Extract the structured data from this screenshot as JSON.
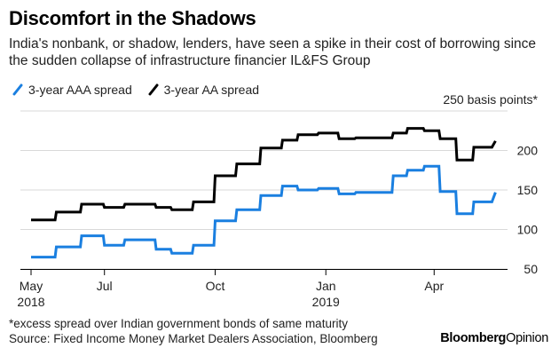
{
  "header": {
    "title": "Discomfort in the Shadows",
    "subtitle": "India's nonbank, or shadow, lenders, have seen a spike in their cost of borrowing since the sudden collapse of infrastructure financier IL&FS Group"
  },
  "footer": {
    "note": "*excess spread over Indian government bonds of same maturity",
    "source": "Source: Fixed Income Money Market Dealers Association, Bloomberg",
    "brand_main": "Bloomberg",
    "brand_sub": "Opinion"
  },
  "colors": {
    "aaa": "#1a7fe0",
    "aa": "#000000",
    "grid": "#d9d9d9"
  },
  "chart_data": {
    "type": "line",
    "title": "Discomfort in the Shadows",
    "ylabel": "",
    "y_unit_label": "250 basis points*",
    "ylim": [
      50,
      250
    ],
    "yticks": [
      50,
      100,
      150,
      200
    ],
    "xlim": [
      "2018-05-01",
      "2019-06-01"
    ],
    "xticks": [
      {
        "date": "2018-05-01",
        "label": "May",
        "sublabel": "2018"
      },
      {
        "date": "2018-07-01",
        "label": "Jul",
        "sublabel": ""
      },
      {
        "date": "2018-10-01",
        "label": "Oct",
        "sublabel": ""
      },
      {
        "date": "2019-01-01",
        "label": "Jan",
        "sublabel": "2019"
      },
      {
        "date": "2019-04-01",
        "label": "Apr",
        "sublabel": ""
      }
    ],
    "legend": "top-left",
    "grid": true,
    "series": [
      {
        "name": "3-year AAA spread",
        "key": "aaa",
        "points": [
          [
            "2018-05-01",
            65
          ],
          [
            "2018-05-21",
            65
          ],
          [
            "2018-05-22",
            78
          ],
          [
            "2018-06-11",
            78
          ],
          [
            "2018-06-12",
            92
          ],
          [
            "2018-06-30",
            92
          ],
          [
            "2018-07-01",
            80
          ],
          [
            "2018-07-17",
            80
          ],
          [
            "2018-07-18",
            87
          ],
          [
            "2018-08-12",
            87
          ],
          [
            "2018-08-13",
            75
          ],
          [
            "2018-08-25",
            75
          ],
          [
            "2018-08-26",
            70
          ],
          [
            "2018-09-12",
            70
          ],
          [
            "2018-09-13",
            80
          ],
          [
            "2018-09-30",
            80
          ],
          [
            "2018-10-01",
            111
          ],
          [
            "2018-10-18",
            111
          ],
          [
            "2018-10-19",
            125
          ],
          [
            "2018-11-07",
            125
          ],
          [
            "2018-11-08",
            143
          ],
          [
            "2018-11-25",
            143
          ],
          [
            "2018-11-26",
            155
          ],
          [
            "2018-12-08",
            155
          ],
          [
            "2018-12-09",
            150
          ],
          [
            "2018-12-25",
            150
          ],
          [
            "2018-12-26",
            152
          ],
          [
            "2019-01-11",
            152
          ],
          [
            "2019-01-12",
            145
          ],
          [
            "2019-01-25",
            145
          ],
          [
            "2019-01-26",
            147
          ],
          [
            "2019-02-25",
            147
          ],
          [
            "2019-02-26",
            168
          ],
          [
            "2019-03-09",
            168
          ],
          [
            "2019-03-10",
            175
          ],
          [
            "2019-03-23",
            175
          ],
          [
            "2019-03-24",
            180
          ],
          [
            "2019-04-05",
            180
          ],
          [
            "2019-04-06",
            148
          ],
          [
            "2019-04-19",
            148
          ],
          [
            "2019-04-20",
            120
          ],
          [
            "2019-05-03",
            120
          ],
          [
            "2019-05-04",
            135
          ],
          [
            "2019-05-19",
            135
          ],
          [
            "2019-05-22",
            147
          ]
        ]
      },
      {
        "name": "3-year AA spread",
        "key": "aa",
        "points": [
          [
            "2018-05-01",
            112
          ],
          [
            "2018-05-21",
            112
          ],
          [
            "2018-05-22",
            122
          ],
          [
            "2018-06-11",
            122
          ],
          [
            "2018-06-12",
            132
          ],
          [
            "2018-06-30",
            132
          ],
          [
            "2018-07-01",
            128
          ],
          [
            "2018-07-17",
            128
          ],
          [
            "2018-07-18",
            132
          ],
          [
            "2018-08-12",
            132
          ],
          [
            "2018-08-13",
            128
          ],
          [
            "2018-08-25",
            128
          ],
          [
            "2018-08-26",
            125
          ],
          [
            "2018-09-12",
            125
          ],
          [
            "2018-09-13",
            135
          ],
          [
            "2018-09-30",
            135
          ],
          [
            "2018-10-01",
            168
          ],
          [
            "2018-10-18",
            168
          ],
          [
            "2018-10-19",
            183
          ],
          [
            "2018-11-07",
            183
          ],
          [
            "2018-11-08",
            203
          ],
          [
            "2018-11-25",
            203
          ],
          [
            "2018-11-26",
            213
          ],
          [
            "2018-12-08",
            213
          ],
          [
            "2018-12-09",
            220
          ],
          [
            "2018-12-25",
            220
          ],
          [
            "2018-12-26",
            222
          ],
          [
            "2019-01-11",
            222
          ],
          [
            "2019-01-12",
            215
          ],
          [
            "2019-01-25",
            215
          ],
          [
            "2019-01-26",
            216
          ],
          [
            "2019-02-25",
            216
          ],
          [
            "2019-02-26",
            222
          ],
          [
            "2019-03-09",
            222
          ],
          [
            "2019-03-10",
            228
          ],
          [
            "2019-03-23",
            228
          ],
          [
            "2019-03-24",
            225
          ],
          [
            "2019-04-05",
            225
          ],
          [
            "2019-04-06",
            215
          ],
          [
            "2019-04-19",
            215
          ],
          [
            "2019-04-20",
            188
          ],
          [
            "2019-05-03",
            188
          ],
          [
            "2019-05-04",
            204
          ],
          [
            "2019-05-19",
            204
          ],
          [
            "2019-05-22",
            212
          ]
        ]
      }
    ]
  }
}
